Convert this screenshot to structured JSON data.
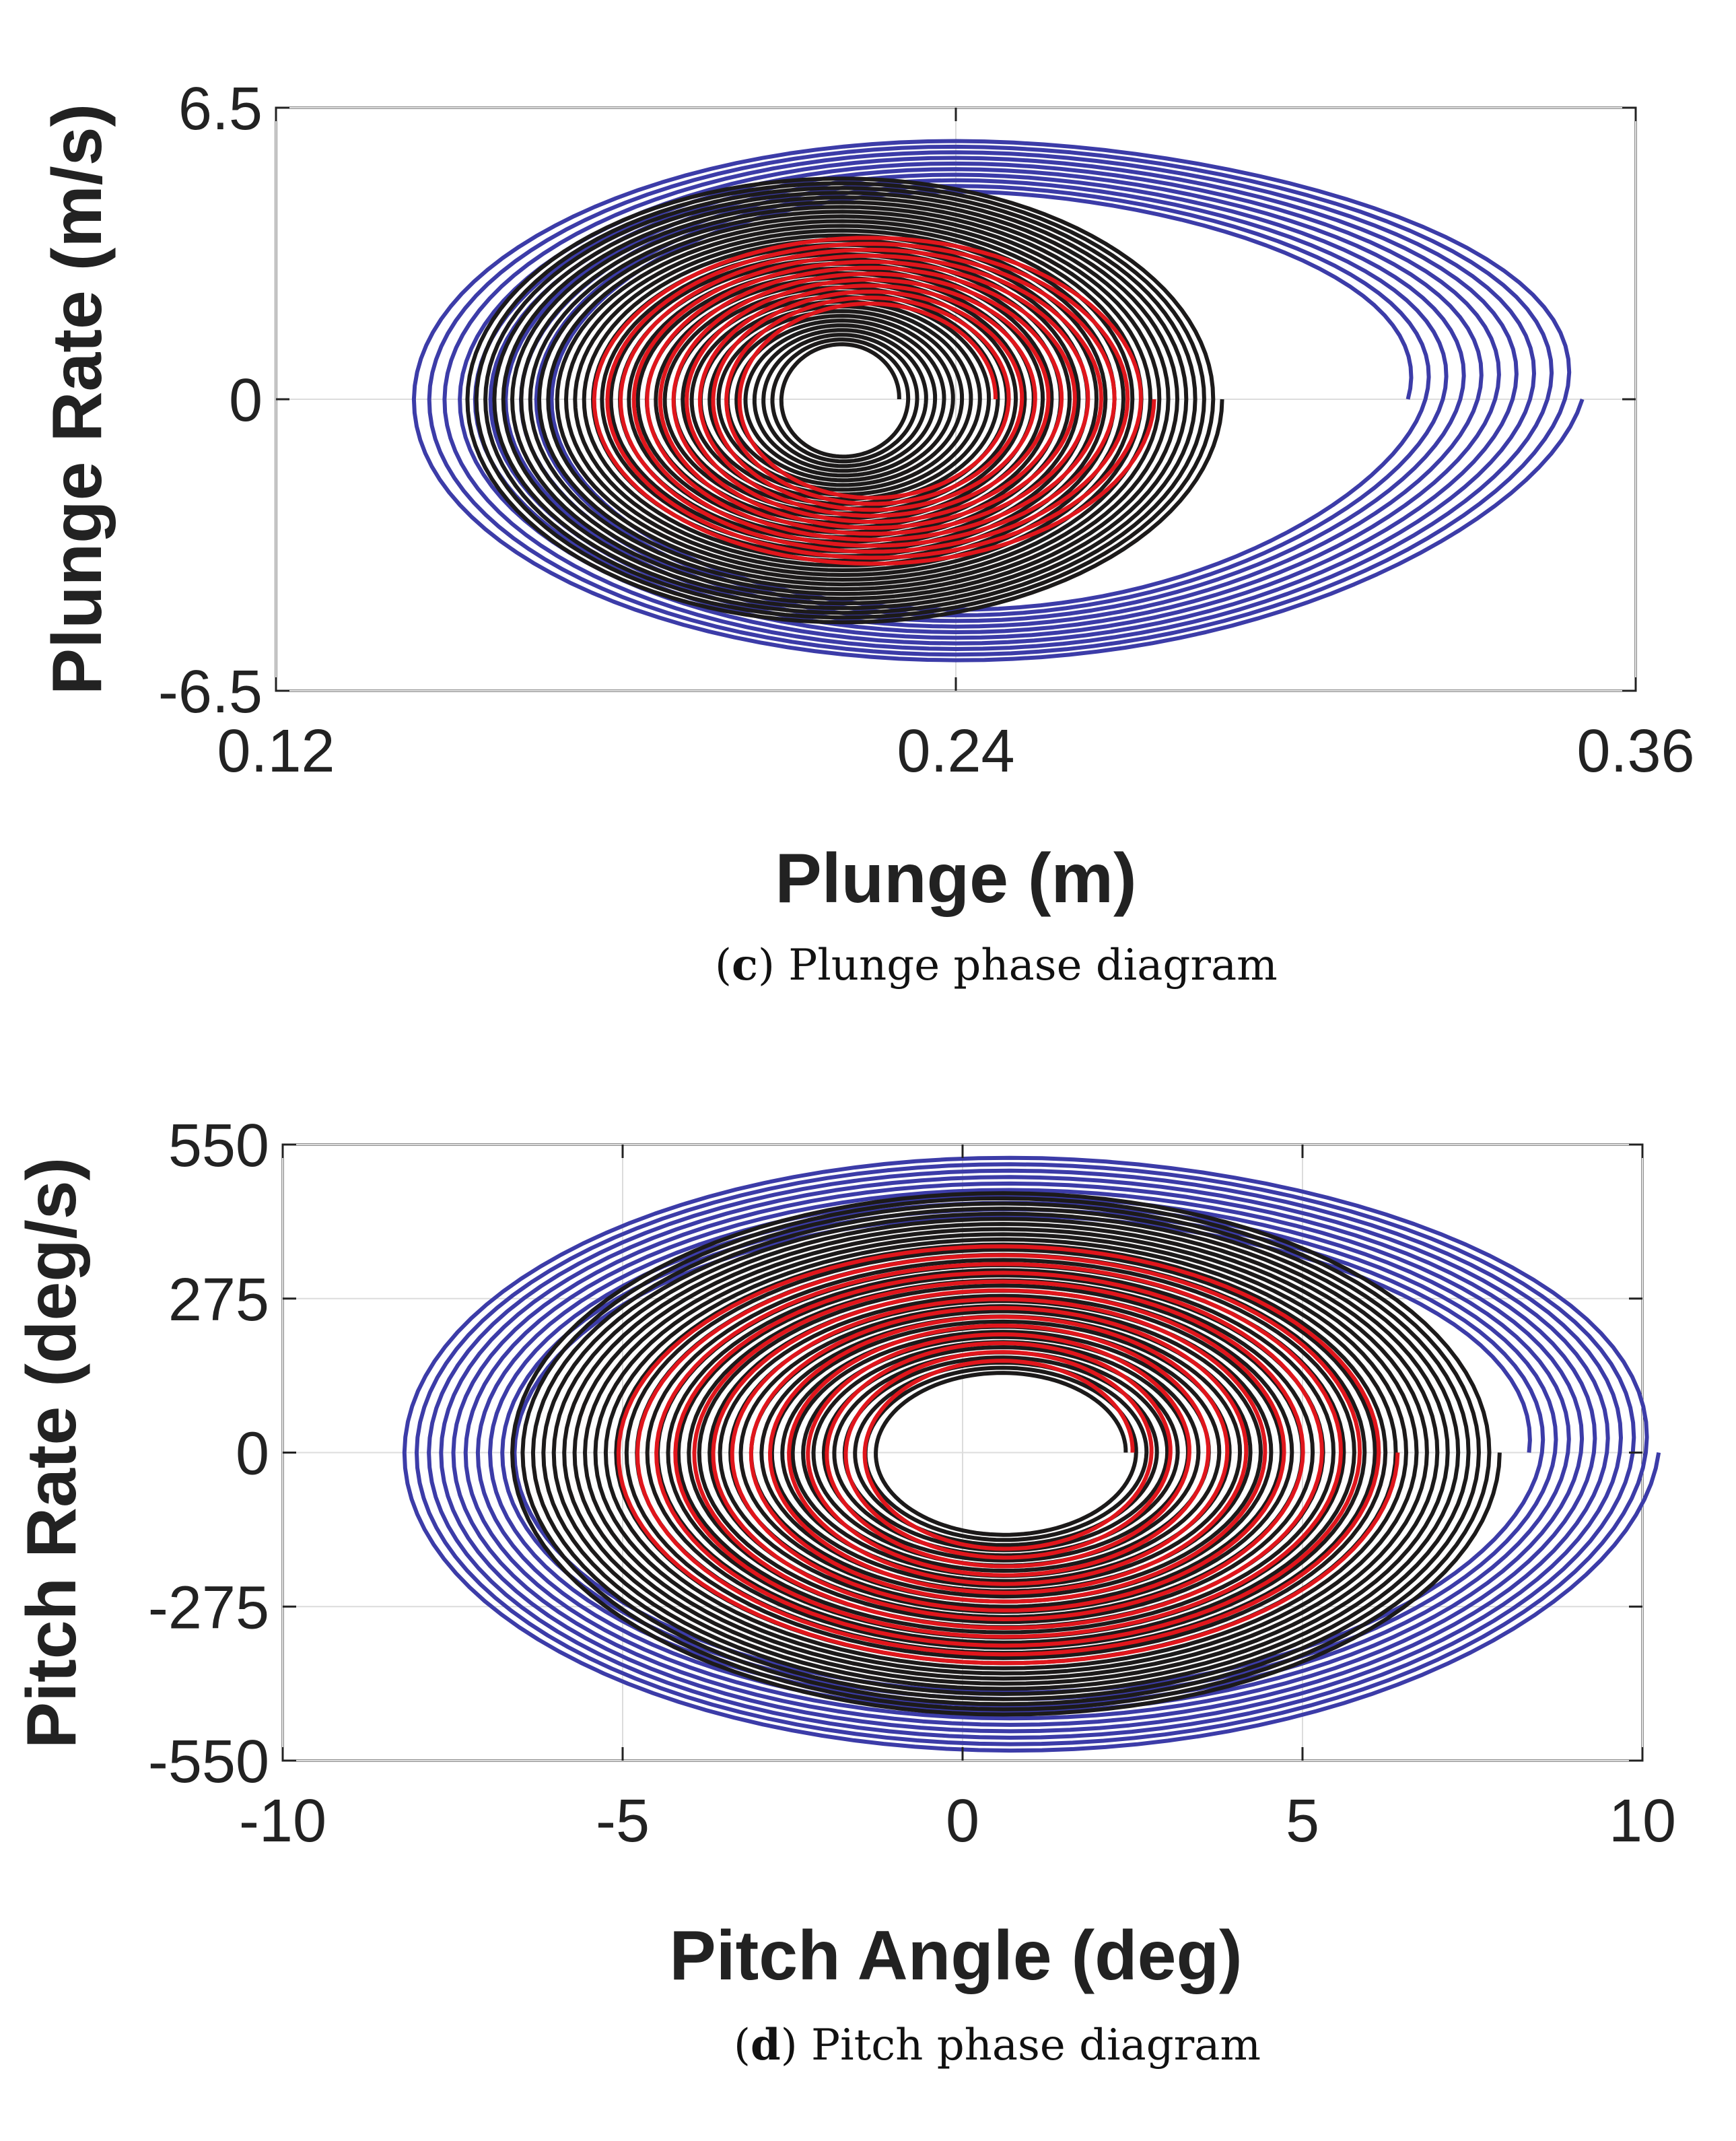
{
  "chart_data": [
    {
      "type": "line",
      "panel": "c",
      "caption_letter": "c",
      "caption_text": "Plunge phase diagram",
      "xlabel": "Plunge (m)",
      "ylabel": "Plunge Rate (m/s)",
      "xlim": [
        0.12,
        0.36
      ],
      "ylim": [
        -6.5,
        6.5
      ],
      "xticks": [
        "0.12",
        "0.24",
        "0.36"
      ],
      "xtick_values": [
        0.12,
        0.24,
        0.36
      ],
      "yticks": [
        "-6.5",
        "0",
        "6.5"
      ],
      "ytick_values": [
        -6.5,
        0,
        6.5
      ],
      "grid": true,
      "series": [
        {
          "name": "blue",
          "color": "#3c3ca8",
          "cx": 0.24,
          "cy": 0,
          "rx_start": 0.07,
          "rx_end": 0.097,
          "ry_start": 4.6,
          "ry_end": 5.85,
          "skew": 0.28,
          "loops": 10
        },
        {
          "name": "black",
          "color": "#1c1a1a",
          "cx": 0.22,
          "cy": 0,
          "rx_start": 0.01,
          "rx_end": 0.067,
          "ry_start": 1.2,
          "ry_end": 5.0,
          "skew": 0.0,
          "loops": 36
        },
        {
          "name": "red",
          "color": "#e0161c",
          "cx": 0.225,
          "cy": 0,
          "rx_start": 0.022,
          "rx_end": 0.05,
          "ry_start": 2.1,
          "ry_end": 3.7,
          "skew": 0.0,
          "loops": 12
        }
      ]
    },
    {
      "type": "line",
      "panel": "d",
      "caption_letter": "d",
      "caption_text": "Pitch phase diagram",
      "xlabel": "Pitch Angle (deg)",
      "ylabel": "Pitch Rate (deg/s)",
      "xlim": [
        -10,
        10
      ],
      "ylim": [
        -550,
        550
      ],
      "xticks": [
        "-10",
        "-5",
        "0",
        "5",
        "10"
      ],
      "xtick_values": [
        -10,
        -5,
        0,
        5,
        10
      ],
      "yticks": [
        "-550",
        "-275",
        "0",
        "275",
        "550"
      ],
      "ytick_values": [
        -550,
        -275,
        0,
        275,
        550
      ],
      "grid": true,
      "series": [
        {
          "name": "blue",
          "color": "#3c3ca8",
          "cx": 0.7,
          "cy": 0,
          "rx_start": 7.2,
          "rx_end": 9.0,
          "ry_start": 420,
          "ry_end": 535,
          "skew": 0.12,
          "loops": 10
        },
        {
          "name": "black",
          "color": "#1c1a1a",
          "cx": 0.6,
          "cy": 0,
          "rx_start": 1.8,
          "rx_end": 7.3,
          "ry_start": 140,
          "ry_end": 470,
          "skew": 0.0,
          "loops": 36
        },
        {
          "name": "red",
          "color": "#e0161c",
          "cx": 0.6,
          "cy": 0,
          "rx_start": 1.9,
          "rx_end": 5.8,
          "ry_start": 160,
          "ry_end": 380,
          "skew": 0.0,
          "loops": 14
        }
      ]
    }
  ]
}
